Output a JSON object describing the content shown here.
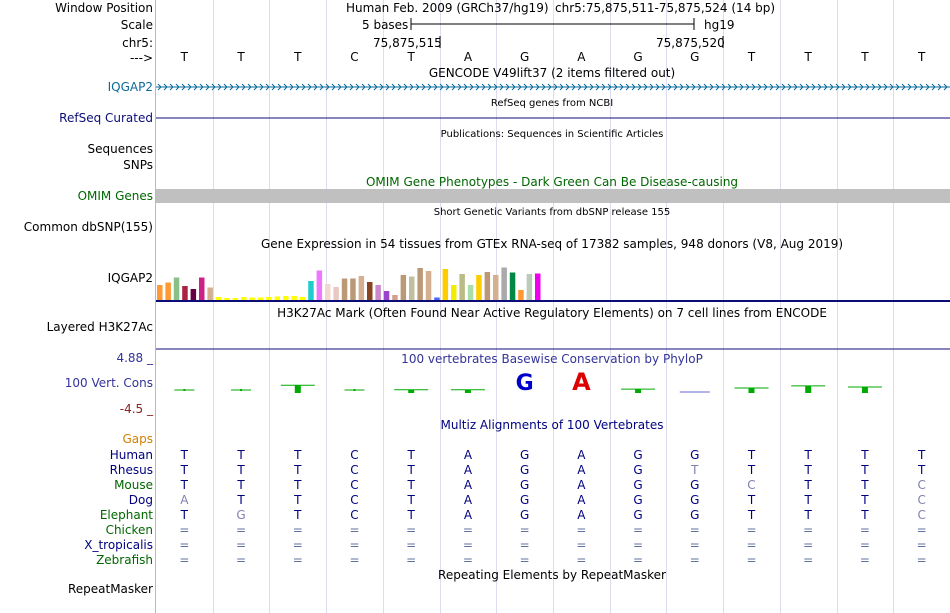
{
  "labels": {
    "window_position": "Window Position",
    "scale": "Scale",
    "chr": "chr5:",
    "arrow": "--->",
    "iqgap2_gencode": "IQGAP2",
    "refseq": "RefSeq Curated",
    "sequences": "Sequences",
    "snps": "SNPs",
    "omim": "OMIM Genes",
    "common_dbsnp": "Common dbSNP(155)",
    "iqgap2_gtex": "IQGAP2",
    "h3k27ac": "Layered H3K27Ac",
    "cons_max": "4.88 _",
    "cons_track": "100 Vert. Cons",
    "cons_min": "-4.5 _",
    "gaps": "Gaps",
    "species": [
      "Human",
      "Rhesus",
      "Mouse",
      "Dog",
      "Elephant",
      "Chicken",
      "X_tropicalis",
      "Zebrafish"
    ],
    "repeatmasker": "RepeatMasker"
  },
  "header": {
    "assembly": "Human Feb. 2009 (GRCh37/hg19)",
    "position": "chr5:75,875,511-75,875,524 (14 bp)",
    "scale": "5 bases",
    "db": "hg19",
    "tick1": "75,875,515",
    "tick2": "75,875,520"
  },
  "titles": {
    "gencode": "GENCODE V49lift37 (2 items filtered out)",
    "refseq": "RefSeq genes from NCBI",
    "publications": "Publications: Sequences in Scientific Articles",
    "omim": "OMIM Gene Phenotypes - Dark Green Can Be Disease-causing",
    "dbsnp": "Short Genetic Variants from dbSNP release 155",
    "gtex": "Gene Expression in 54 tissues from GTEx RNA-seq of 17382 samples, 948 donors (V8, Aug 2019)",
    "h3k27ac": "H3K27Ac Mark (Often Found Near Active Regulatory Elements) on 7 cell lines from ENCODE",
    "cons": "100 vertebrates Basewise Conservation by PhyloP",
    "multiz": "Multiz Alignments of 100 Vertebrates",
    "repeatmasker": "Repeating Elements by RepeatMasker"
  },
  "sequence": [
    "T",
    "T",
    "T",
    "C",
    "T",
    "A",
    "G",
    "A",
    "G",
    "G",
    "T",
    "T",
    "T",
    "T"
  ],
  "alignment": {
    "Rhesus": [
      "T",
      "T",
      "T",
      "C",
      "T",
      "A",
      "G",
      "A",
      "G",
      "T",
      "T",
      "T",
      "T",
      "T"
    ],
    "Mouse": [
      "T",
      "T",
      "T",
      "C",
      "T",
      "A",
      "G",
      "A",
      "G",
      "G",
      "C",
      "T",
      "T",
      "C"
    ],
    "Dog": [
      "A",
      "T",
      "T",
      "C",
      "T",
      "A",
      "G",
      "A",
      "G",
      "G",
      "T",
      "T",
      "T",
      "C"
    ],
    "Elephant": [
      "T",
      "G",
      "T",
      "C",
      "T",
      "A",
      "G",
      "A",
      "G",
      "G",
      "T",
      "T",
      "T",
      "C"
    ],
    "Chicken": [
      "=",
      "=",
      "=",
      "=",
      "=",
      "=",
      "=",
      "=",
      "=",
      "=",
      "=",
      "=",
      "=",
      "="
    ],
    "X_tropicalis": [
      "=",
      "=",
      "=",
      "=",
      "=",
      "=",
      "=",
      "=",
      "=",
      "=",
      "=",
      "=",
      "=",
      "="
    ],
    "Zebrafish": [
      "=",
      "=",
      "=",
      "=",
      "=",
      "=",
      "=",
      "=",
      "=",
      "=",
      "=",
      "=",
      "=",
      "="
    ]
  },
  "conservation": [
    0.15,
    0.05,
    0.7,
    0.1,
    0.3,
    0.3,
    0.85,
    1.0,
    0.35,
    -0.1,
    0.45,
    0.65,
    0.55,
    0.0
  ],
  "gtex_values": [
    0.3,
    0.35,
    0.45,
    0.28,
    0.22,
    0.45,
    0.25,
    0.06,
    0.04,
    0.04,
    0.06,
    0.05,
    0.05,
    0.06,
    0.07,
    0.08,
    0.08,
    0.06,
    0.38,
    0.59,
    0.32,
    0.26,
    0.43,
    0.43,
    0.48,
    0.36,
    0.3,
    0.18,
    0.1,
    0.5,
    0.47,
    0.64,
    0.58,
    0.05,
    0.62,
    0.3,
    0.52,
    0.3,
    0.5,
    0.56,
    0.5,
    0.65,
    0.55,
    0.2,
    0.52,
    0.53
  ],
  "gtex_colors": [
    "#ff9933",
    "#ff9933",
    "#88c088",
    "#aa2244",
    "#660044",
    "#cc2288",
    "#d4b090",
    "#ffff00",
    "#ffff00",
    "#ffff00",
    "#ffff00",
    "#ffff00",
    "#ffff00",
    "#ffff00",
    "#ffff00",
    "#ffff00",
    "#ffff00",
    "#ffff00",
    "#22cccc",
    "#ee77ff",
    "#f0d8d0",
    "#e8c8c0",
    "#bb9977",
    "#bb9977",
    "#d4b090",
    "#884422",
    "#cc88cc",
    "#9944cc",
    "#d4a090",
    "#bb9977",
    "#c0c0a0",
    "#bb9977",
    "#d4b090",
    "#4466ff",
    "#ffcc00",
    "#eeee00",
    "#bbbb88",
    "#aaddaa",
    "#ffcc00",
    "#bb9977",
    "#d4b090",
    "#aaaaaa",
    "#008844",
    "#ff9933",
    "#bbccbb",
    "#ee00ee"
  ],
  "colors": {
    "base": "#000000",
    "gencode": "#0c6a99",
    "refseq": "#0c0c78",
    "omim": "#006600",
    "cons_label": "#333399",
    "gaps": "#d08000",
    "species": "#000080",
    "mismatch": "#8080b0"
  }
}
